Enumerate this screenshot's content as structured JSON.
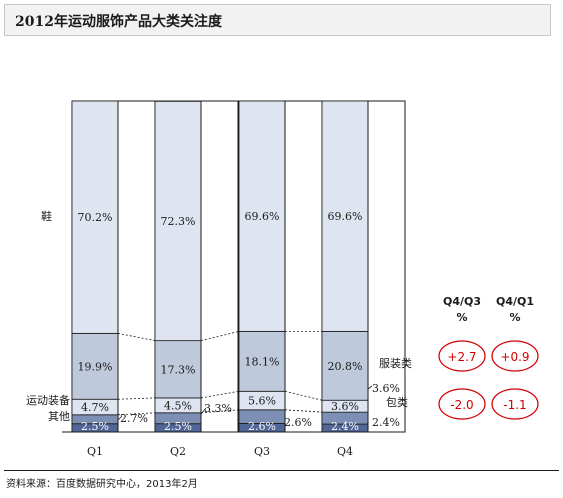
{
  "title": "2012年运动服饰产品大类关注度",
  "source": "资料来源：百度数据研究中心，2013年2月",
  "colors": {
    "shoes": "#dfe5f0",
    "apparel": "#bfc9dc",
    "equipment": "#7d8fb4",
    "other": "#4f6696",
    "gap": "#ffffff",
    "outline": "#1a1a1a",
    "circle": "#d40000"
  },
  "chart_data": {
    "type": "bar",
    "stacked": true,
    "categories": [
      "Q1",
      "Q2",
      "Q3",
      "Q4"
    ],
    "series": [
      {
        "name": "其他",
        "values": [
          2.5,
          2.5,
          2.6,
          2.4
        ],
        "labels": [
          "2.5%",
          "2.5%",
          "2.6%",
          "2.4%"
        ]
      },
      {
        "name": "运动装备",
        "values": [
          2.7,
          3.3,
          4.1,
          3.6
        ],
        "labels": [
          "2.7%",
          "3.3%",
          "4.1%",
          "3.6%"
        ]
      },
      {
        "name": "包类",
        "values": [
          4.7,
          4.5,
          5.6,
          3.6
        ],
        "labels": [
          "4.7%",
          "4.5%",
          "5.6%",
          "3.6%"
        ]
      },
      {
        "name": "服装类",
        "values": [
          19.9,
          17.3,
          18.1,
          20.8
        ],
        "labels": [
          "19.9%",
          "17.3%",
          "18.1%",
          "20.8%"
        ]
      },
      {
        "name": "鞋",
        "values": [
          70.2,
          72.3,
          69.6,
          69.6
        ],
        "labels": [
          "70.2%",
          "72.3%",
          "69.6%",
          "69.6%"
        ]
      }
    ],
    "change_table": {
      "headers": [
        [
          "Q4/Q3",
          "%"
        ],
        [
          "Q4/Q1",
          "%"
        ]
      ],
      "rows": [
        {
          "series": "服装类",
          "values": [
            "+2.7",
            "+0.9"
          ]
        },
        {
          "series": "包类",
          "values": [
            "-2.0",
            "-1.1"
          ]
        }
      ]
    }
  }
}
